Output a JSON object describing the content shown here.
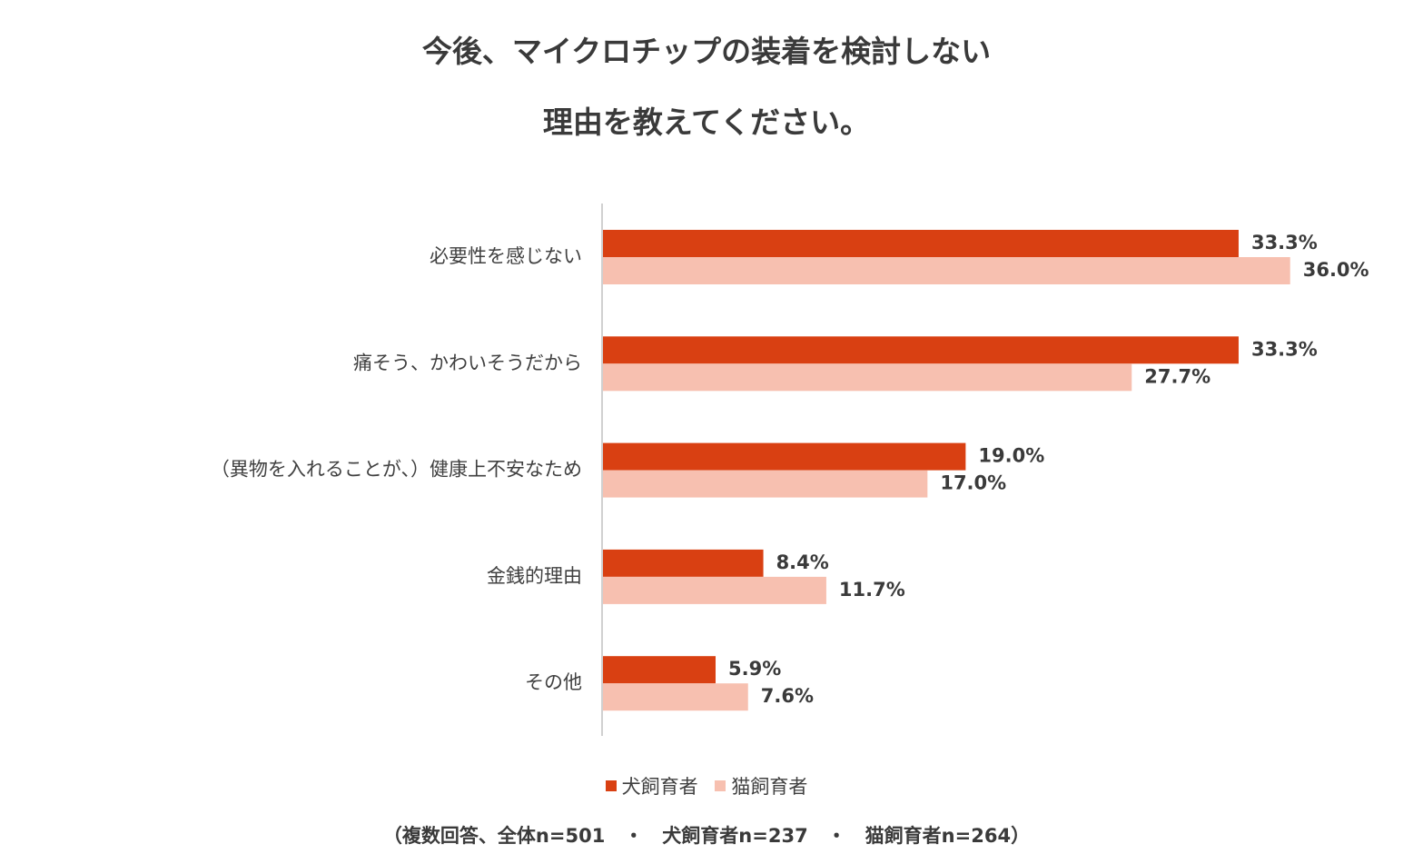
{
  "title_line1": "今後、マイクロチップの装着を検討しない",
  "title_line2": "理由を教えてください。",
  "note": "（複数回答、全体n=501　・　犬飼育者n=237　・　猫飼育者n=264）",
  "colors": {
    "dog": "#D94012",
    "cat": "#F7C0B0",
    "axis": "#d0d0d0"
  },
  "chart_data": {
    "type": "bar",
    "orientation": "horizontal",
    "categories": [
      "必要性を感じない",
      "痛そう、かわいそうだから",
      "（異物を入れることが、）健康上不安なため",
      "金銭的理由",
      "その他"
    ],
    "series": [
      {
        "name": "犬飼育者",
        "values": [
          33.3,
          33.3,
          19.0,
          8.4,
          5.9
        ],
        "labels": [
          "33.3%",
          "33.3%",
          "19.0%",
          "8.4%",
          "5.9%"
        ]
      },
      {
        "name": "猫飼育者",
        "values": [
          36.0,
          27.7,
          17.0,
          11.7,
          7.6
        ],
        "labels": [
          "36.0%",
          "27.7%",
          "17.0%",
          "11.7%",
          "7.6%"
        ]
      }
    ],
    "legend_position": "bottom",
    "grid": false
  }
}
